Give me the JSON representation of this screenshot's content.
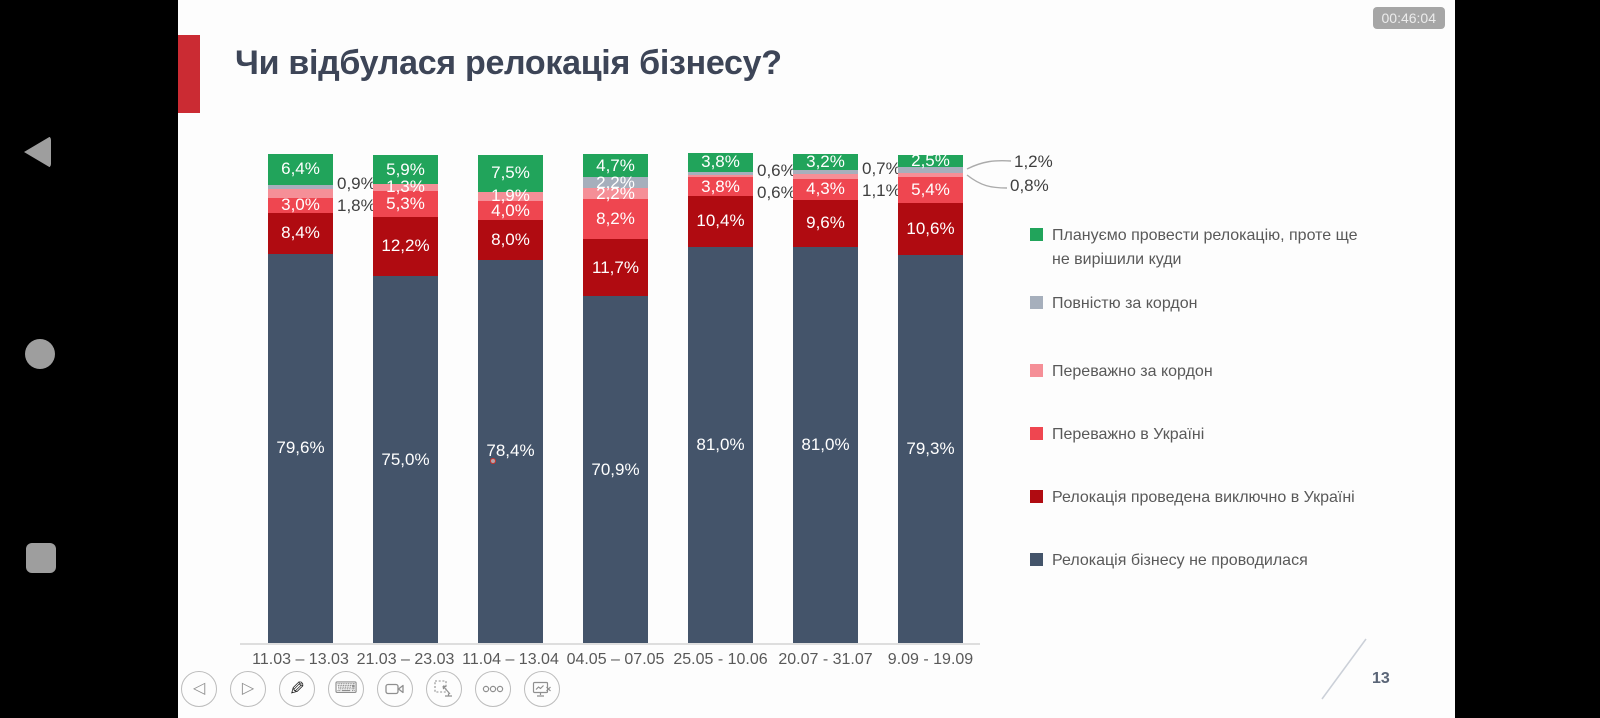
{
  "screen": {
    "timer": "00:46:04",
    "page_number": "13"
  },
  "android_nav": {
    "back_icon": "triangle-left",
    "home_icon": "circle",
    "recents_icon": "square"
  },
  "slide": {
    "title": "Чи відбулася релокація бізнесу?"
  },
  "chart_data": {
    "type": "bar",
    "stacked": true,
    "unit": "%",
    "value_format": "comma-decimal",
    "gridlines": false,
    "ylim": [
      0,
      100
    ],
    "legend_position": "right",
    "categories": [
      "11.03 – 13.03",
      "21.03 – 23.03",
      "11.04 – 13.04",
      "04.05 – 07.05",
      "25.05 - 10.06",
      "20.07 - 31.07",
      "9.09 - 19.09"
    ],
    "series": [
      {
        "name": "Плануємо провести релокацію, проте ще не вирішили куди",
        "color": "#21A45B",
        "values": [
          6.4,
          5.9,
          7.5,
          4.7,
          3.8,
          3.2,
          2.5
        ]
      },
      {
        "name": "Повністю за кордон",
        "color": "#A6AFBC",
        "values": [
          0.9,
          null,
          null,
          2.2,
          0.6,
          0.7,
          1.2
        ]
      },
      {
        "name": "Переважно за кордон",
        "color": "#F58F97",
        "values": [
          1.8,
          1.3,
          1.9,
          2.2,
          0.6,
          1.1,
          0.8
        ]
      },
      {
        "name": "Переважно в Україні",
        "color": "#EF4650",
        "values": [
          3.0,
          5.3,
          4.0,
          8.2,
          3.8,
          4.3,
          5.4
        ]
      },
      {
        "name": "Релокація проведена виключно в Україні",
        "color": "#B00B11",
        "values": [
          8.4,
          12.2,
          8.0,
          11.7,
          10.4,
          9.6,
          10.6
        ]
      },
      {
        "name": "Релокація бізнесу не проводилася",
        "color": "#44546A",
        "values": [
          79.6,
          75.0,
          78.4,
          70.9,
          81.0,
          81.0,
          79.3
        ]
      }
    ],
    "legend_labels": [
      "Плануємо провести релокацію, проте ще\nне вирішили куди",
      "Повністю за кордон",
      "Переважно за кордон",
      "Переважно в Україні",
      "Релокація проведена виключно в Україні",
      "Релокація бізнесу не проводилася"
    ],
    "outside_labels": [
      {
        "bar": 0,
        "series": [
          1,
          2
        ],
        "callout": false
      },
      {
        "bar": 4,
        "series": [
          1,
          2
        ],
        "callout": false
      },
      {
        "bar": 5,
        "series": [
          1,
          2
        ],
        "callout": false
      },
      {
        "bar": 6,
        "series": [
          1,
          2
        ],
        "callout": true
      }
    ]
  },
  "toolbar": {
    "buttons": [
      {
        "name": "previous-slide",
        "type": "glyph",
        "glyph": "◁"
      },
      {
        "name": "next-slide",
        "type": "glyph",
        "glyph": "▷"
      },
      {
        "name": "pen-annotate",
        "type": "glyph",
        "glyph": "✎",
        "dark": true
      },
      {
        "name": "keyboard",
        "type": "glyph",
        "glyph": "⌨"
      },
      {
        "name": "video-camera",
        "type": "svg-camera"
      },
      {
        "name": "laser-pointer",
        "type": "svg-pointer"
      },
      {
        "name": "more-options",
        "type": "svg-dots"
      },
      {
        "name": "present-display",
        "type": "svg-monitor"
      }
    ]
  }
}
